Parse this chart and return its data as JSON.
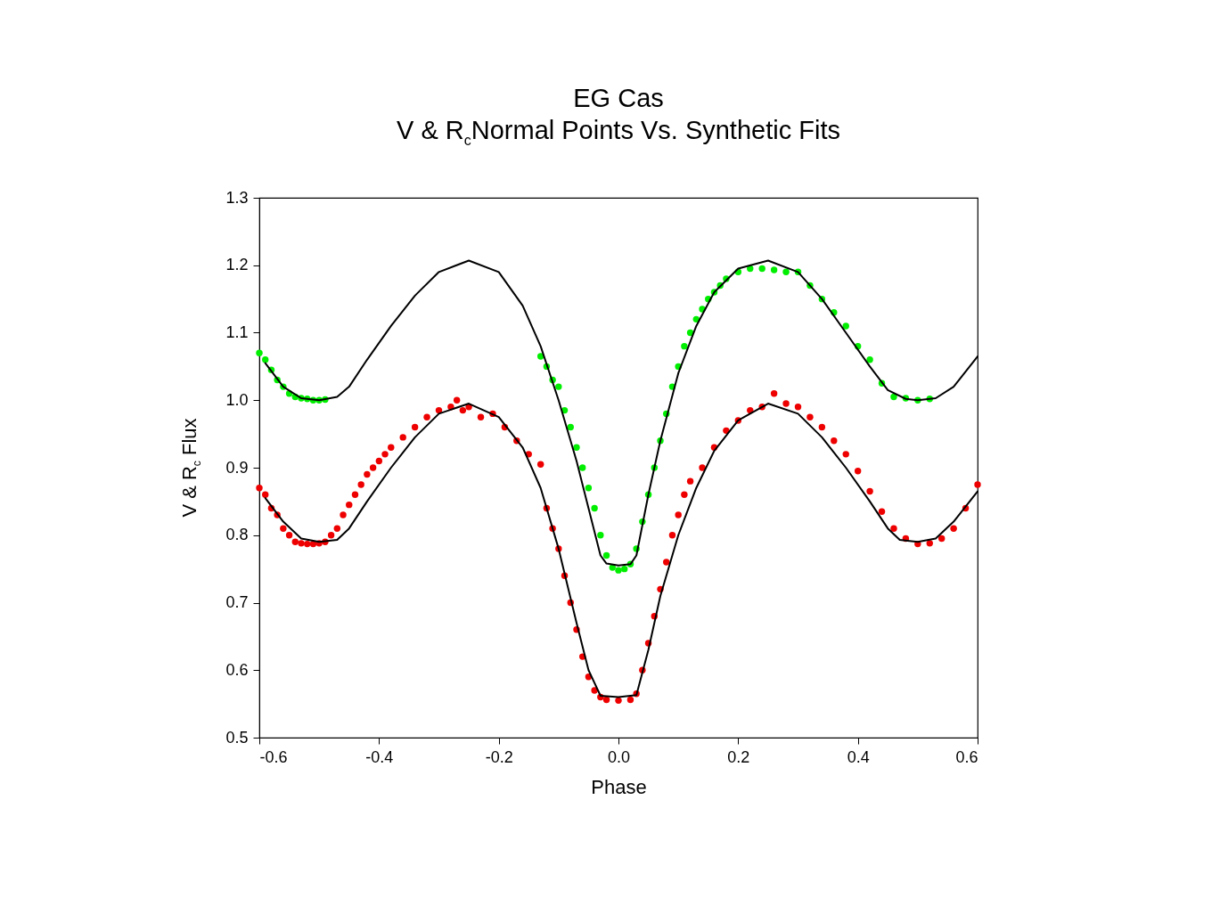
{
  "chart_data": {
    "type": "scatter",
    "title": "EG Cas",
    "subtitle": "V & R$_{c}$Normal Points Vs. Synthetic Fits",
    "xlabel": "Phase",
    "ylabel": "V & R$_{c}$ Flux",
    "xlim": [
      -0.6,
      0.6
    ],
    "ylim": [
      0.5,
      1.3
    ],
    "xticks": [
      {
        "value": -0.6,
        "label": "-0.6"
      },
      {
        "value": -0.4,
        "label": "-0.4"
      },
      {
        "value": -0.2,
        "label": "-0.2"
      },
      {
        "value": 0,
        "label": "0.0"
      },
      {
        "value": 0.2,
        "label": "0.2"
      },
      {
        "value": 0.4,
        "label": "0.4"
      },
      {
        "value": 0.6,
        "label": "0.6"
      }
    ],
    "yticks": [
      {
        "value": 0.5,
        "label": "0.5"
      },
      {
        "value": 0.6,
        "label": "0.6"
      },
      {
        "value": 0.7,
        "label": "0.7"
      },
      {
        "value": 0.8,
        "label": "0.8"
      },
      {
        "value": 0.9,
        "label": "0.9"
      },
      {
        "value": 1.0,
        "label": "1.0"
      },
      {
        "value": 1.1,
        "label": "1.1"
      },
      {
        "value": 1.2,
        "label": "1.2"
      },
      {
        "value": 1.3,
        "label": "1.3"
      }
    ],
    "series": [
      {
        "type": "scatter",
        "marker": "circle",
        "color": "#00ee00",
        "x": [
          -0.6,
          -0.59,
          -0.58,
          -0.57,
          -0.56,
          -0.55,
          -0.54,
          -0.53,
          -0.52,
          -0.51,
          -0.5,
          -0.49,
          -0.13,
          -0.12,
          -0.11,
          -0.1,
          -0.09,
          -0.08,
          -0.07,
          -0.06,
          -0.05,
          -0.04,
          -0.03,
          -0.02,
          -0.01,
          0,
          0.01,
          0.02,
          0.03,
          0.04,
          0.05,
          0.06,
          0.07,
          0.08,
          0.09,
          0.1,
          0.11,
          0.12,
          0.13,
          0.14,
          0.15,
          0.16,
          0.17,
          0.18,
          0.2,
          0.22,
          0.24,
          0.26,
          0.28,
          0.3,
          0.32,
          0.34,
          0.36,
          0.38,
          0.4,
          0.42,
          0.44,
          0.46,
          0.48,
          0.5,
          0.52
        ],
        "values": [
          1.07,
          1.06,
          1.045,
          1.03,
          1.02,
          1.01,
          1.005,
          1.003,
          1.002,
          1.0,
          1.0,
          1.001,
          1.065,
          1.05,
          1.03,
          1.02,
          0.985,
          0.96,
          0.93,
          0.9,
          0.87,
          0.84,
          0.8,
          0.77,
          0.752,
          0.748,
          0.75,
          0.757,
          0.78,
          0.82,
          0.86,
          0.9,
          0.94,
          0.98,
          1.02,
          1.05,
          1.08,
          1.1,
          1.12,
          1.135,
          1.15,
          1.16,
          1.17,
          1.18,
          1.19,
          1.195,
          1.195,
          1.193,
          1.19,
          1.19,
          1.17,
          1.15,
          1.13,
          1.11,
          1.08,
          1.06,
          1.025,
          1.005,
          1.003,
          1.0,
          1.002
        ]
      },
      {
        "type": "scatter",
        "marker": "circle",
        "color": "#ee0000",
        "x": [
          -0.6,
          -0.59,
          -0.58,
          -0.57,
          -0.56,
          -0.55,
          -0.54,
          -0.53,
          -0.52,
          -0.51,
          -0.5,
          -0.49,
          -0.48,
          -0.47,
          -0.46,
          -0.45,
          -0.44,
          -0.43,
          -0.42,
          -0.41,
          -0.4,
          -0.39,
          -0.38,
          -0.36,
          -0.34,
          -0.32,
          -0.3,
          -0.28,
          -0.27,
          -0.26,
          -0.25,
          -0.23,
          -0.21,
          -0.19,
          -0.17,
          -0.15,
          -0.13,
          -0.12,
          -0.11,
          -0.1,
          -0.09,
          -0.08,
          -0.07,
          -0.06,
          -0.05,
          -0.04,
          -0.03,
          -0.02,
          0,
          0.02,
          0.03,
          0.04,
          0.05,
          0.06,
          0.07,
          0.08,
          0.09,
          0.1,
          0.11,
          0.12,
          0.14,
          0.16,
          0.18,
          0.2,
          0.22,
          0.24,
          0.26,
          0.28,
          0.3,
          0.32,
          0.34,
          0.36,
          0.38,
          0.4,
          0.42,
          0.44,
          0.46,
          0.48,
          0.5,
          0.52,
          0.54,
          0.56,
          0.58,
          0.6
        ],
        "values": [
          0.87,
          0.86,
          0.84,
          0.83,
          0.81,
          0.8,
          0.79,
          0.788,
          0.787,
          0.787,
          0.788,
          0.79,
          0.8,
          0.81,
          0.83,
          0.845,
          0.86,
          0.875,
          0.89,
          0.9,
          0.91,
          0.92,
          0.93,
          0.945,
          0.96,
          0.975,
          0.985,
          0.99,
          1.0,
          0.985,
          0.99,
          0.975,
          0.98,
          0.96,
          0.94,
          0.92,
          0.905,
          0.84,
          0.81,
          0.78,
          0.74,
          0.7,
          0.66,
          0.62,
          0.59,
          0.57,
          0.56,
          0.556,
          0.555,
          0.556,
          0.565,
          0.6,
          0.64,
          0.68,
          0.72,
          0.76,
          0.8,
          0.83,
          0.86,
          0.88,
          0.9,
          0.93,
          0.955,
          0.97,
          0.985,
          0.99,
          1.01,
          0.995,
          0.99,
          0.975,
          0.96,
          0.94,
          0.92,
          0.895,
          0.865,
          0.835,
          0.81,
          0.795,
          0.787,
          0.788,
          0.795,
          0.81,
          0.84,
          0.875
        ]
      },
      {
        "type": "line",
        "color": "#000000",
        "x": [
          -0.59,
          -0.56,
          -0.53,
          -0.5,
          -0.47,
          -0.45,
          -0.42,
          -0.38,
          -0.34,
          -0.3,
          -0.25,
          -0.2,
          -0.16,
          -0.13,
          -0.1,
          -0.07,
          -0.05,
          -0.03,
          -0.02,
          0,
          0.02,
          0.03,
          0.05,
          0.07,
          0.1,
          0.13,
          0.16,
          0.2,
          0.25,
          0.3,
          0.34,
          0.38,
          0.42,
          0.45,
          0.48,
          0.5,
          0.53,
          0.56,
          0.6
        ],
        "values": [
          1.055,
          1.02,
          1.003,
          1.0,
          1.005,
          1.02,
          1.06,
          1.11,
          1.155,
          1.19,
          1.207,
          1.19,
          1.14,
          1.08,
          1.0,
          0.91,
          0.84,
          0.77,
          0.758,
          0.755,
          0.757,
          0.77,
          0.86,
          0.94,
          1.04,
          1.11,
          1.16,
          1.195,
          1.207,
          1.19,
          1.15,
          1.1,
          1.05,
          1.015,
          1.002,
          1.0,
          1.003,
          1.02,
          1.065
        ]
      },
      {
        "type": "line",
        "color": "#000000",
        "x": [
          -0.59,
          -0.56,
          -0.53,
          -0.5,
          -0.47,
          -0.45,
          -0.42,
          -0.38,
          -0.34,
          -0.3,
          -0.25,
          -0.2,
          -0.16,
          -0.13,
          -0.1,
          -0.07,
          -0.05,
          -0.03,
          0,
          0.03,
          0.05,
          0.07,
          0.1,
          0.13,
          0.16,
          0.2,
          0.25,
          0.3,
          0.34,
          0.38,
          0.42,
          0.45,
          0.47,
          0.5,
          0.53,
          0.56,
          0.6
        ],
        "values": [
          0.855,
          0.82,
          0.795,
          0.79,
          0.793,
          0.81,
          0.85,
          0.9,
          0.945,
          0.98,
          0.995,
          0.975,
          0.93,
          0.87,
          0.78,
          0.67,
          0.6,
          0.562,
          0.56,
          0.563,
          0.63,
          0.71,
          0.8,
          0.87,
          0.925,
          0.97,
          0.995,
          0.98,
          0.945,
          0.9,
          0.85,
          0.81,
          0.793,
          0.79,
          0.795,
          0.82,
          0.865
        ]
      }
    ]
  }
}
